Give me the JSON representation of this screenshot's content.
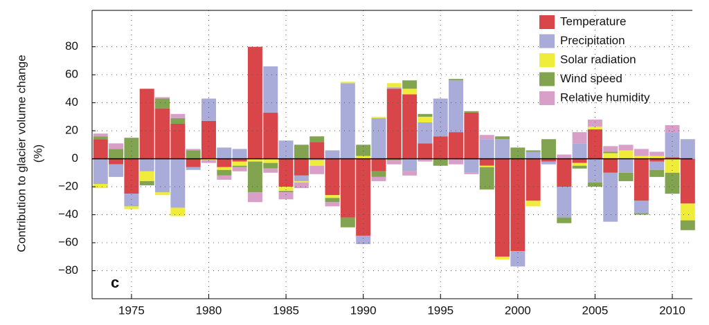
{
  "chart_data": {
    "type": "stacked-bar",
    "panel_label": "c",
    "ylabel": [
      "Contribution to glacier volume change",
      "(%)"
    ],
    "x": [
      1973,
      1974,
      1975,
      1976,
      1977,
      1978,
      1979,
      1980,
      1981,
      1982,
      1983,
      1984,
      1985,
      1986,
      1987,
      1988,
      1989,
      1990,
      1991,
      1992,
      1993,
      1994,
      1995,
      1996,
      1997,
      1998,
      1999,
      2000,
      2001,
      2002,
      2003,
      2004,
      2005,
      2006,
      2007,
      2008,
      2009,
      2010,
      2011
    ],
    "series": [
      {
        "name": "Temperature",
        "color": "#d9464a",
        "values": [
          14,
          -4,
          -25,
          50,
          36,
          25,
          -6,
          27,
          -6,
          -2,
          80,
          33,
          -20,
          -12,
          12,
          -26,
          -42,
          -55,
          -9,
          50,
          46,
          11,
          16,
          19,
          33,
          -5,
          -70,
          -66,
          -30,
          -2,
          -20,
          -3,
          21,
          -10,
          0,
          -30,
          -2,
          1,
          -32
        ]
      },
      {
        "name": "Precipitation",
        "color": "#a9abd8",
        "values": [
          -18,
          -9,
          -9,
          -9,
          -24,
          -35,
          -2,
          16,
          8,
          7,
          0,
          33,
          13,
          -4,
          -1,
          6,
          54,
          -6,
          29,
          1,
          -9,
          15,
          27,
          37,
          -10,
          14,
          14,
          -11,
          5,
          -2,
          -22,
          11,
          -17,
          -35,
          -10,
          -9,
          -6,
          18,
          14
        ]
      },
      {
        "name": "Solar radiation",
        "color": "#f0ec3a",
        "values": [
          -3,
          0,
          -2,
          -7,
          -2,
          -6,
          0,
          -1,
          -2,
          -3,
          -2,
          -3,
          -3,
          -1,
          -4,
          -2,
          1,
          2,
          1,
          3,
          4,
          4,
          0,
          0,
          0,
          -1,
          -2,
          0,
          -4,
          0,
          0,
          -2,
          2,
          4,
          6,
          2,
          2,
          -10,
          -12
        ]
      },
      {
        "name": "Wind speed",
        "color": "#82a450",
        "values": [
          2,
          7,
          15,
          -3,
          7,
          4,
          6,
          0,
          -4,
          -1,
          -22,
          -4,
          -1,
          10,
          4,
          -3,
          -7,
          8,
          -4,
          -1,
          6,
          2,
          -5,
          1,
          1,
          -16,
          2,
          8,
          1,
          14,
          -4,
          -2,
          -3,
          1,
          -6,
          -1,
          -5,
          -15,
          -7
        ]
      },
      {
        "name": "Relative humidity",
        "color": "#d8a0c8",
        "values": [
          2,
          4,
          0,
          0,
          1,
          3,
          1,
          -2,
          -3,
          -3,
          -7,
          -3,
          -5,
          -4,
          -6,
          -3,
          0,
          0,
          -3,
          -3,
          -3,
          -2,
          0,
          -4,
          -1,
          3,
          0,
          0,
          0,
          0,
          3,
          8,
          5,
          4,
          4,
          5,
          3,
          5,
          0
        ]
      }
    ],
    "xlim": [
      1972.45,
      2011.3
    ],
    "xticks": [
      1975,
      1980,
      1985,
      1990,
      1995,
      2000,
      2005,
      2010
    ],
    "ylim": [
      -100,
      106
    ],
    "yticks": [
      {
        "value": -80,
        "label": "−80"
      },
      {
        "value": -60,
        "label": "−60"
      },
      {
        "value": -40,
        "label": "−40"
      },
      {
        "value": -20,
        "label": "−20"
      },
      0,
      20,
      40,
      60,
      80
    ],
    "grid": true,
    "legend": "upper right"
  }
}
